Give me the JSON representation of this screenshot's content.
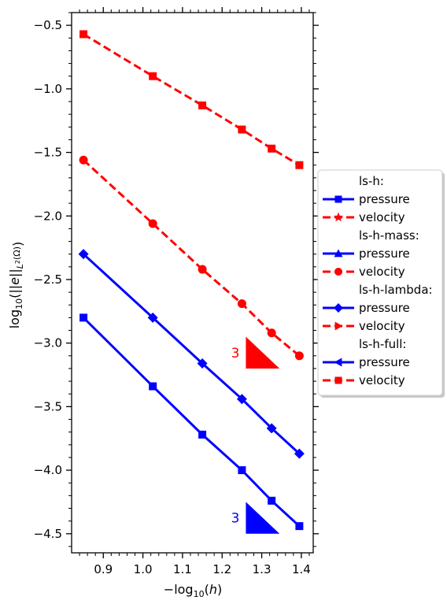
{
  "chart_data": {
    "type": "line",
    "xlabel": "−log10(h)",
    "ylabel": "log10(||e||L²(Ω))",
    "xlim": [
      0.82,
      1.43
    ],
    "ylim": [
      -4.65,
      -0.4
    ],
    "xticks": [
      0.9,
      1.0,
      1.1,
      1.2,
      1.3,
      1.4
    ],
    "xtick_labels": [
      "0.9",
      "1.0",
      "1.1",
      "1.2",
      "1.3",
      "1.4"
    ],
    "yticks": [
      -0.5,
      -1.0,
      -1.5,
      -2.0,
      -2.5,
      -3.0,
      -3.5,
      -4.0,
      -4.5
    ],
    "ytick_labels": [
      "−0.5",
      "−1.0",
      "−1.5",
      "−2.0",
      "−2.5",
      "−3.0",
      "−3.5",
      "−4.0",
      "−4.5"
    ],
    "x": [
      0.85,
      1.025,
      1.15,
      1.25,
      1.325,
      1.395
    ],
    "series": [
      {
        "values": [
          -0.57,
          -0.9,
          -1.13,
          -1.32,
          -1.47,
          -1.6
        ],
        "color": "#ff0000",
        "dash": true,
        "marker": "square"
      },
      {
        "values": [
          -1.56,
          -2.06,
          -2.42,
          -2.69,
          -2.92,
          -3.1
        ],
        "color": "#ff0000",
        "dash": true,
        "marker": "circle"
      },
      {
        "values": [
          -2.3,
          -2.8,
          -3.16,
          -3.44,
          -3.67,
          -3.87
        ],
        "color": "#0000ff",
        "dash": false,
        "marker": "diamond"
      },
      {
        "values": [
          -2.8,
          -3.34,
          -3.72,
          -4.0,
          -4.24,
          -4.44
        ],
        "color": "#0000ff",
        "dash": false,
        "marker": "square"
      }
    ],
    "slope_triangles": [
      {
        "label": "3",
        "color": "#ff0000",
        "x": [
          1.26,
          1.345
        ],
        "y": [
          -3.2,
          -2.95
        ]
      },
      {
        "label": "3",
        "color": "#0000ff",
        "x": [
          1.26,
          1.345
        ],
        "y": [
          -4.5,
          -4.25
        ]
      }
    ],
    "legend": {
      "placement": "right",
      "entries": [
        {
          "label": "ls-h:",
          "header": true
        },
        {
          "label": "pressure",
          "color": "#0000ff",
          "dash": false,
          "marker": "square"
        },
        {
          "label": "velocity",
          "color": "#ff0000",
          "dash": true,
          "marker": "star"
        },
        {
          "label": "ls-h-mass:",
          "header": true
        },
        {
          "label": "pressure",
          "color": "#0000ff",
          "dash": false,
          "marker": "triangle"
        },
        {
          "label": "velocity",
          "color": "#ff0000",
          "dash": true,
          "marker": "circle"
        },
        {
          "label": "ls-h-lambda:",
          "header": true
        },
        {
          "label": "pressure",
          "color": "#0000ff",
          "dash": false,
          "marker": "diamond"
        },
        {
          "label": "velocity",
          "color": "#ff0000",
          "dash": true,
          "marker": "triangle-right"
        },
        {
          "label": "ls-h-full:",
          "header": true
        },
        {
          "label": "pressure",
          "color": "#0000ff",
          "dash": false,
          "marker": "triangle-left"
        },
        {
          "label": "velocity",
          "color": "#ff0000",
          "dash": true,
          "marker": "square"
        }
      ]
    }
  }
}
